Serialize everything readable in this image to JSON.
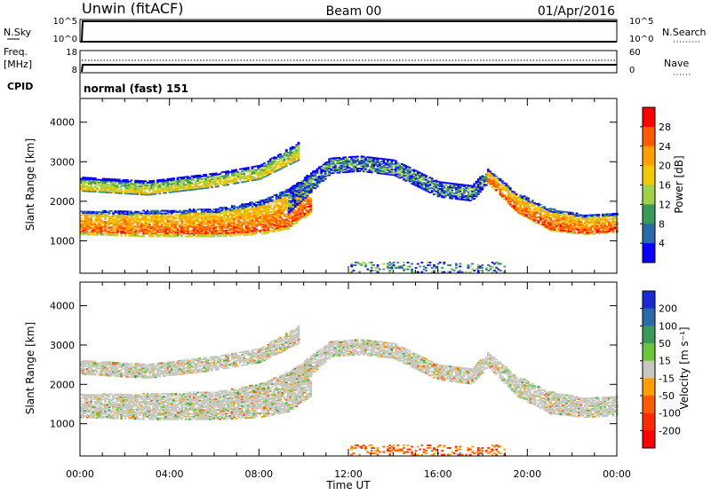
{
  "header": {
    "station": "Unwin (fitACF)",
    "beam": "Beam 00",
    "date": "01/Apr/2016"
  },
  "noise_panel": {
    "left_label": "N.Sky",
    "right_label": "N.Search",
    "left_ticks": [
      "10^5",
      "10^0"
    ],
    "right_ticks": [
      "10^5",
      "10^0"
    ]
  },
  "freq_panel": {
    "left_label_1": "Freq.",
    "left_label_2": "[MHz]",
    "right_label": "Nave",
    "left_ticks": [
      "18",
      "8"
    ],
    "right_ticks": [
      "60",
      "0"
    ]
  },
  "cpid": {
    "label": "CPID",
    "value": "normal (fast) 151"
  },
  "x_ticks": [
    "00:00",
    "04:00",
    "08:00",
    "12:00",
    "16:00",
    "20:00",
    "00:00"
  ],
  "x_title": "Time UT",
  "y_title": "Slant Range [km]",
  "y_ticks": [
    "1000",
    "2000",
    "3000",
    "4000"
  ],
  "power_colorbar": {
    "title": "Power [dB]",
    "ticks": [
      "28",
      "24",
      "20",
      "16",
      "12",
      "8",
      "4"
    ],
    "colors": [
      "#ff0000",
      "#ff5a00",
      "#ff9f00",
      "#f2c800",
      "#9fd24a",
      "#3a9a5a",
      "#2a6aa8",
      "#0a00ff"
    ]
  },
  "velocity_colorbar": {
    "title": "Velocity [m s⁻¹]",
    "ticks": [
      "200",
      "100",
      "50",
      "15",
      "-15",
      "-50",
      "-100",
      "-200"
    ],
    "colors": [
      "#1a2ad0",
      "#2a6aa8",
      "#3a9a5a",
      "#6cc83a",
      "#c8c8c0",
      "#ff9f00",
      "#ff5a00",
      "#ff2a00",
      "#ff0000"
    ]
  },
  "chart_data": {
    "type": "heatmap",
    "x_range_hours": [
      0,
      24
    ],
    "y_range_km": [
      180,
      4600
    ],
    "features": [
      {
        "name": "lower",
        "t": [
          0,
          3,
          6,
          8,
          9.3,
          10.3
        ],
        "r_low": [
          1150,
          1100,
          1100,
          1150,
          1300,
          1700
        ],
        "r_high": [
          1750,
          1750,
          1800,
          2000,
          2300,
          2700
        ],
        "power": "high",
        "velocity": "~0"
      },
      {
        "name": "upper",
        "t": [
          0,
          3,
          6,
          8,
          9.8
        ],
        "r_low": [
          2250,
          2150,
          2350,
          2550,
          3050
        ],
        "r_high": [
          2600,
          2500,
          2700,
          2900,
          3500
        ],
        "power": "medium",
        "velocity": "~0"
      },
      {
        "name": "rise",
        "t": [
          9.3,
          11.2,
          12.5,
          14,
          16,
          17.5,
          18.2
        ],
        "r_low": [
          1700,
          2700,
          2750,
          2650,
          2100,
          2000,
          2450
        ],
        "r_high": [
          2300,
          3100,
          3150,
          3050,
          2500,
          2400,
          2800
        ],
        "power": "low",
        "velocity": "~0"
      },
      {
        "name": "late",
        "t": [
          18.2,
          19.5,
          21,
          22.5,
          24
        ],
        "r_low": [
          2450,
          1700,
          1250,
          1150,
          1200
        ],
        "r_high": [
          2800,
          2200,
          1800,
          1650,
          1700
        ],
        "power": "high",
        "velocity": "~0"
      },
      {
        "name": "near range clutter",
        "t": [
          12,
          13.5,
          15,
          16.5,
          18,
          19
        ],
        "r_low": [
          200,
          200,
          200,
          200,
          200,
          200
        ],
        "r_high": [
          450,
          450,
          450,
          450,
          450,
          450
        ],
        "power": "low",
        "velocity": "negative"
      }
    ]
  }
}
